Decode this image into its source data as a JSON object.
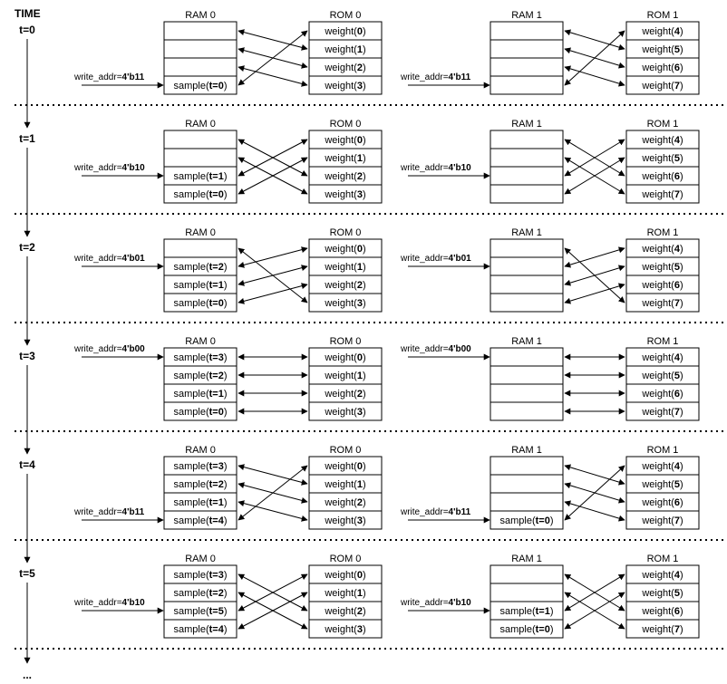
{
  "timeline": {
    "title": "TIME",
    "ellipsis": "...",
    "colors": {
      "line": "#000000",
      "cell_fill": "#ffffff",
      "cell_stroke": "#000000"
    }
  },
  "steps": [
    {
      "t": "t=0",
      "left": {
        "ram_title": "RAM 0",
        "rom_title": "ROM 0",
        "write_label": "write_addr=",
        "write_value": "4'b11",
        "write_row": 3,
        "ram": [
          null,
          null,
          null,
          [
            "sample(",
            "t=0",
            ")"
          ]
        ],
        "rom": [
          "0",
          "1",
          "2",
          "3"
        ],
        "pairs": [
          [
            0,
            1
          ],
          [
            1,
            2
          ],
          [
            2,
            3
          ],
          [
            3,
            0
          ]
        ]
      },
      "right": {
        "ram_title": "RAM 1",
        "rom_title": "ROM 1",
        "write_label": "write_addr=",
        "write_value": "4'b11",
        "write_row": 3,
        "ram": [
          null,
          null,
          null,
          null
        ],
        "rom": [
          "4",
          "5",
          "6",
          "7"
        ],
        "pairs": [
          [
            0,
            1
          ],
          [
            1,
            2
          ],
          [
            2,
            3
          ],
          [
            3,
            0
          ]
        ]
      }
    },
    {
      "t": "t=1",
      "left": {
        "ram_title": "RAM 0",
        "rom_title": "ROM 0",
        "write_label": "write_addr=",
        "write_value": "4'b10",
        "write_row": 2,
        "ram": [
          null,
          null,
          [
            "sample(",
            "t=1",
            ")"
          ],
          [
            "sample(",
            "t=0",
            ")"
          ]
        ],
        "rom": [
          "0",
          "1",
          "2",
          "3"
        ],
        "pairs": [
          [
            0,
            2
          ],
          [
            1,
            3
          ],
          [
            2,
            0
          ],
          [
            3,
            1
          ]
        ]
      },
      "right": {
        "ram_title": "RAM 1",
        "rom_title": "ROM 1",
        "write_label": "write_addr=",
        "write_value": "4'b10",
        "write_row": 2,
        "ram": [
          null,
          null,
          null,
          null
        ],
        "rom": [
          "4",
          "5",
          "6",
          "7"
        ],
        "pairs": [
          [
            0,
            2
          ],
          [
            1,
            3
          ],
          [
            2,
            0
          ],
          [
            3,
            1
          ]
        ]
      }
    },
    {
      "t": "t=2",
      "left": {
        "ram_title": "RAM 0",
        "rom_title": "ROM 0",
        "write_label": "write_addr=",
        "write_value": "4'b01",
        "write_row": 1,
        "ram": [
          null,
          [
            "sample(",
            "t=2",
            ")"
          ],
          [
            "sample(",
            "t=1",
            ")"
          ],
          [
            "sample(",
            "t=0",
            ")"
          ]
        ],
        "rom": [
          "0",
          "1",
          "2",
          "3"
        ],
        "pairs": [
          [
            0,
            3
          ],
          [
            1,
            0
          ],
          [
            2,
            1
          ],
          [
            3,
            2
          ]
        ]
      },
      "right": {
        "ram_title": "RAM 1",
        "rom_title": "ROM 1",
        "write_label": "write_addr=",
        "write_value": "4'b01",
        "write_row": 1,
        "ram": [
          null,
          null,
          null,
          null
        ],
        "rom": [
          "4",
          "5",
          "6",
          "7"
        ],
        "pairs": [
          [
            0,
            3
          ],
          [
            1,
            0
          ],
          [
            2,
            1
          ],
          [
            3,
            2
          ]
        ]
      }
    },
    {
      "t": "t=3",
      "left": {
        "ram_title": "RAM 0",
        "rom_title": "ROM 0",
        "write_label": "write_addr=",
        "write_value": "4'b00",
        "write_row": 0,
        "ram": [
          [
            "sample(",
            "t=3",
            ")"
          ],
          [
            "sample(",
            "t=2",
            ")"
          ],
          [
            "sample(",
            "t=1",
            ")"
          ],
          [
            "sample(",
            "t=0",
            ")"
          ]
        ],
        "rom": [
          "0",
          "1",
          "2",
          "3"
        ],
        "pairs": [
          [
            0,
            0
          ],
          [
            1,
            1
          ],
          [
            2,
            2
          ],
          [
            3,
            3
          ]
        ]
      },
      "right": {
        "ram_title": "RAM 1",
        "rom_title": "ROM 1",
        "write_label": "write_addr=",
        "write_value": "4'b00",
        "write_row": 0,
        "ram": [
          null,
          null,
          null,
          null
        ],
        "rom": [
          "4",
          "5",
          "6",
          "7"
        ],
        "pairs": [
          [
            0,
            0
          ],
          [
            1,
            1
          ],
          [
            2,
            2
          ],
          [
            3,
            3
          ]
        ]
      }
    },
    {
      "t": "t=4",
      "left": {
        "ram_title": "RAM 0",
        "rom_title": "ROM 0",
        "write_label": "write_addr=",
        "write_value": "4'b11",
        "write_row": 3,
        "ram": [
          [
            "sample(",
            "t=3",
            ")"
          ],
          [
            "sample(",
            "t=2",
            ")"
          ],
          [
            "sample(",
            "t=1",
            ")"
          ],
          [
            "sample(",
            "t=4",
            ")"
          ]
        ],
        "rom": [
          "0",
          "1",
          "2",
          "3"
        ],
        "pairs": [
          [
            0,
            1
          ],
          [
            1,
            2
          ],
          [
            2,
            3
          ],
          [
            3,
            0
          ]
        ]
      },
      "right": {
        "ram_title": "RAM 1",
        "rom_title": "ROM 1",
        "write_label": "write_addr=",
        "write_value": "4'b11",
        "write_row": 3,
        "ram": [
          null,
          null,
          null,
          [
            "sample(",
            "t=0",
            ")"
          ]
        ],
        "rom": [
          "4",
          "5",
          "6",
          "7"
        ],
        "pairs": [
          [
            0,
            1
          ],
          [
            1,
            2
          ],
          [
            2,
            3
          ],
          [
            3,
            0
          ]
        ]
      }
    },
    {
      "t": "t=5",
      "left": {
        "ram_title": "RAM 0",
        "rom_title": "ROM 0",
        "write_label": "write_addr=",
        "write_value": "4'b10",
        "write_row": 2,
        "ram": [
          [
            "sample(",
            "t=3",
            ")"
          ],
          [
            "sample(",
            "t=2",
            ")"
          ],
          [
            "sample(",
            "t=5",
            ")"
          ],
          [
            "sample(",
            "t=4",
            ")"
          ]
        ],
        "rom": [
          "0",
          "1",
          "2",
          "3"
        ],
        "pairs": [
          [
            0,
            2
          ],
          [
            1,
            3
          ],
          [
            2,
            0
          ],
          [
            3,
            1
          ]
        ]
      },
      "right": {
        "ram_title": "RAM 1",
        "rom_title": "ROM 1",
        "write_label": "write_addr=",
        "write_value": "4'b10",
        "write_row": 2,
        "ram": [
          null,
          null,
          [
            "sample(",
            "t=1",
            ")"
          ],
          [
            "sample(",
            "t=0",
            ")"
          ]
        ],
        "rom": [
          "4",
          "5",
          "6",
          "7"
        ],
        "pairs": [
          [
            0,
            2
          ],
          [
            1,
            3
          ],
          [
            2,
            0
          ],
          [
            3,
            1
          ]
        ]
      }
    }
  ]
}
